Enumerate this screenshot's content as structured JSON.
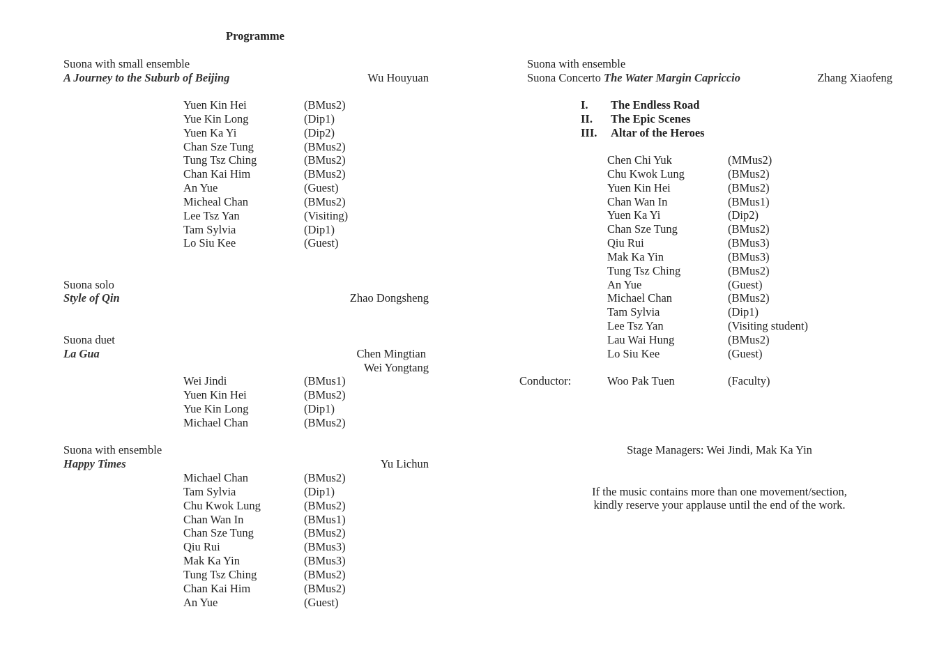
{
  "title": "Programme",
  "left": [
    {
      "label": "Suona with small ensemble",
      "work": "A Journey to the Suburb of Beijing",
      "composers": [
        "Wu Houyuan"
      ],
      "performers": [
        [
          "Yuen Kin Hei",
          "(BMus2)"
        ],
        [
          "Yue Kin Long",
          "(Dip1)"
        ],
        [
          "Yuen Ka Yi",
          "(Dip2)"
        ],
        [
          "Chan Sze Tung",
          "(BMus2)"
        ],
        [
          "Tung Tsz Ching",
          "(BMus2)"
        ],
        [
          "Chan Kai Him",
          "(BMus2)"
        ],
        [
          "An  Yue",
          "(Guest)"
        ],
        [
          "Micheal Chan",
          "(BMus2)"
        ],
        [
          "Lee Tsz Yan",
          "(Visiting)"
        ],
        [
          "Tam Sylvia",
          "(Dip1)"
        ],
        [
          "Lo Siu Kee",
          "(Guest)"
        ]
      ]
    },
    {
      "label": "Suona solo",
      "work": "Style of Qin",
      "composers": [
        "Zhao Dongsheng"
      ],
      "performers": []
    },
    {
      "label": "Suona duet",
      "work": "La Gua",
      "composers": [
        "Chen Mingtian",
        "Wei Yongtang"
      ],
      "performers": [
        [
          "Wei Jindi",
          "(BMus1)"
        ],
        [
          "Yuen Kin Hei",
          "(BMus2)"
        ],
        [
          "Yue Kin Long",
          "(Dip1)"
        ],
        [
          "Michael Chan",
          "(BMus2)"
        ]
      ]
    },
    {
      "label": "Suona with ensemble",
      "work": "Happy Times",
      "composers": [
        "Yu Lichun"
      ],
      "performers": [
        [
          "Michael Chan",
          "(BMus2)"
        ],
        [
          "Tam Sylvia",
          "(Dip1)"
        ],
        [
          "Chu Kwok Lung",
          "(BMus2)"
        ],
        [
          "Chan Wan In",
          "(BMus1)"
        ],
        [
          "Chan Sze Tung",
          "(BMus2)"
        ],
        [
          "Qiu Rui",
          "(BMus3)"
        ],
        [
          "Mak Ka Yin",
          "(BMus3)"
        ],
        [
          "Tung Tsz Ching",
          "(BMus2)"
        ],
        [
          "Chan Kai Him",
          "(BMus2)"
        ],
        [
          "An  Yue",
          "(Guest)"
        ]
      ]
    }
  ],
  "right": {
    "label": "Suona with ensemble",
    "prefix": "Suona Concerto ",
    "work": "The Water Margin Capriccio",
    "composer": "Zhang Xiaofeng",
    "movements": [
      [
        "I.",
        "The Endless Road"
      ],
      [
        "II.",
        "The Epic Scenes"
      ],
      [
        "III.",
        "Altar of the Heroes"
      ]
    ],
    "performers": [
      [
        "Chen Chi Yuk",
        "(MMus2)"
      ],
      [
        "Chu Kwok Lung",
        "(BMus2)"
      ],
      [
        "Yuen Kin Hei",
        "(BMus2)"
      ],
      [
        "Chan Wan In",
        "(BMus1)"
      ],
      [
        "Yuen Ka Yi",
        "(Dip2)"
      ],
      [
        "Chan Sze Tung",
        "(BMus2)"
      ],
      [
        "Qiu Rui",
        "(BMus3)"
      ],
      [
        "Mak Ka Yin",
        "(BMus3)"
      ],
      [
        "Tung Tsz Ching",
        "(BMus2)"
      ],
      [
        "An  Yue",
        "(Guest)"
      ],
      [
        "Michael Chan",
        "(BMus2)"
      ],
      [
        "Tam Sylvia",
        "(Dip1)"
      ],
      [
        "Lee Tsz Yan",
        "(Visiting student)"
      ],
      [
        "Lau Wai Hung",
        "(BMus2)"
      ],
      [
        "Lo Siu Kee",
        "(Guest)"
      ]
    ],
    "conductor_label": "Conductor:",
    "conductor": [
      "Woo Pak Tuen",
      "(Faculty)"
    ],
    "stage_managers": "Stage Managers: Wei Jindi, Mak Ka Yin",
    "note": [
      "If the music contains more than one movement/section,",
      "kindly reserve your applause until the end of the work."
    ]
  }
}
